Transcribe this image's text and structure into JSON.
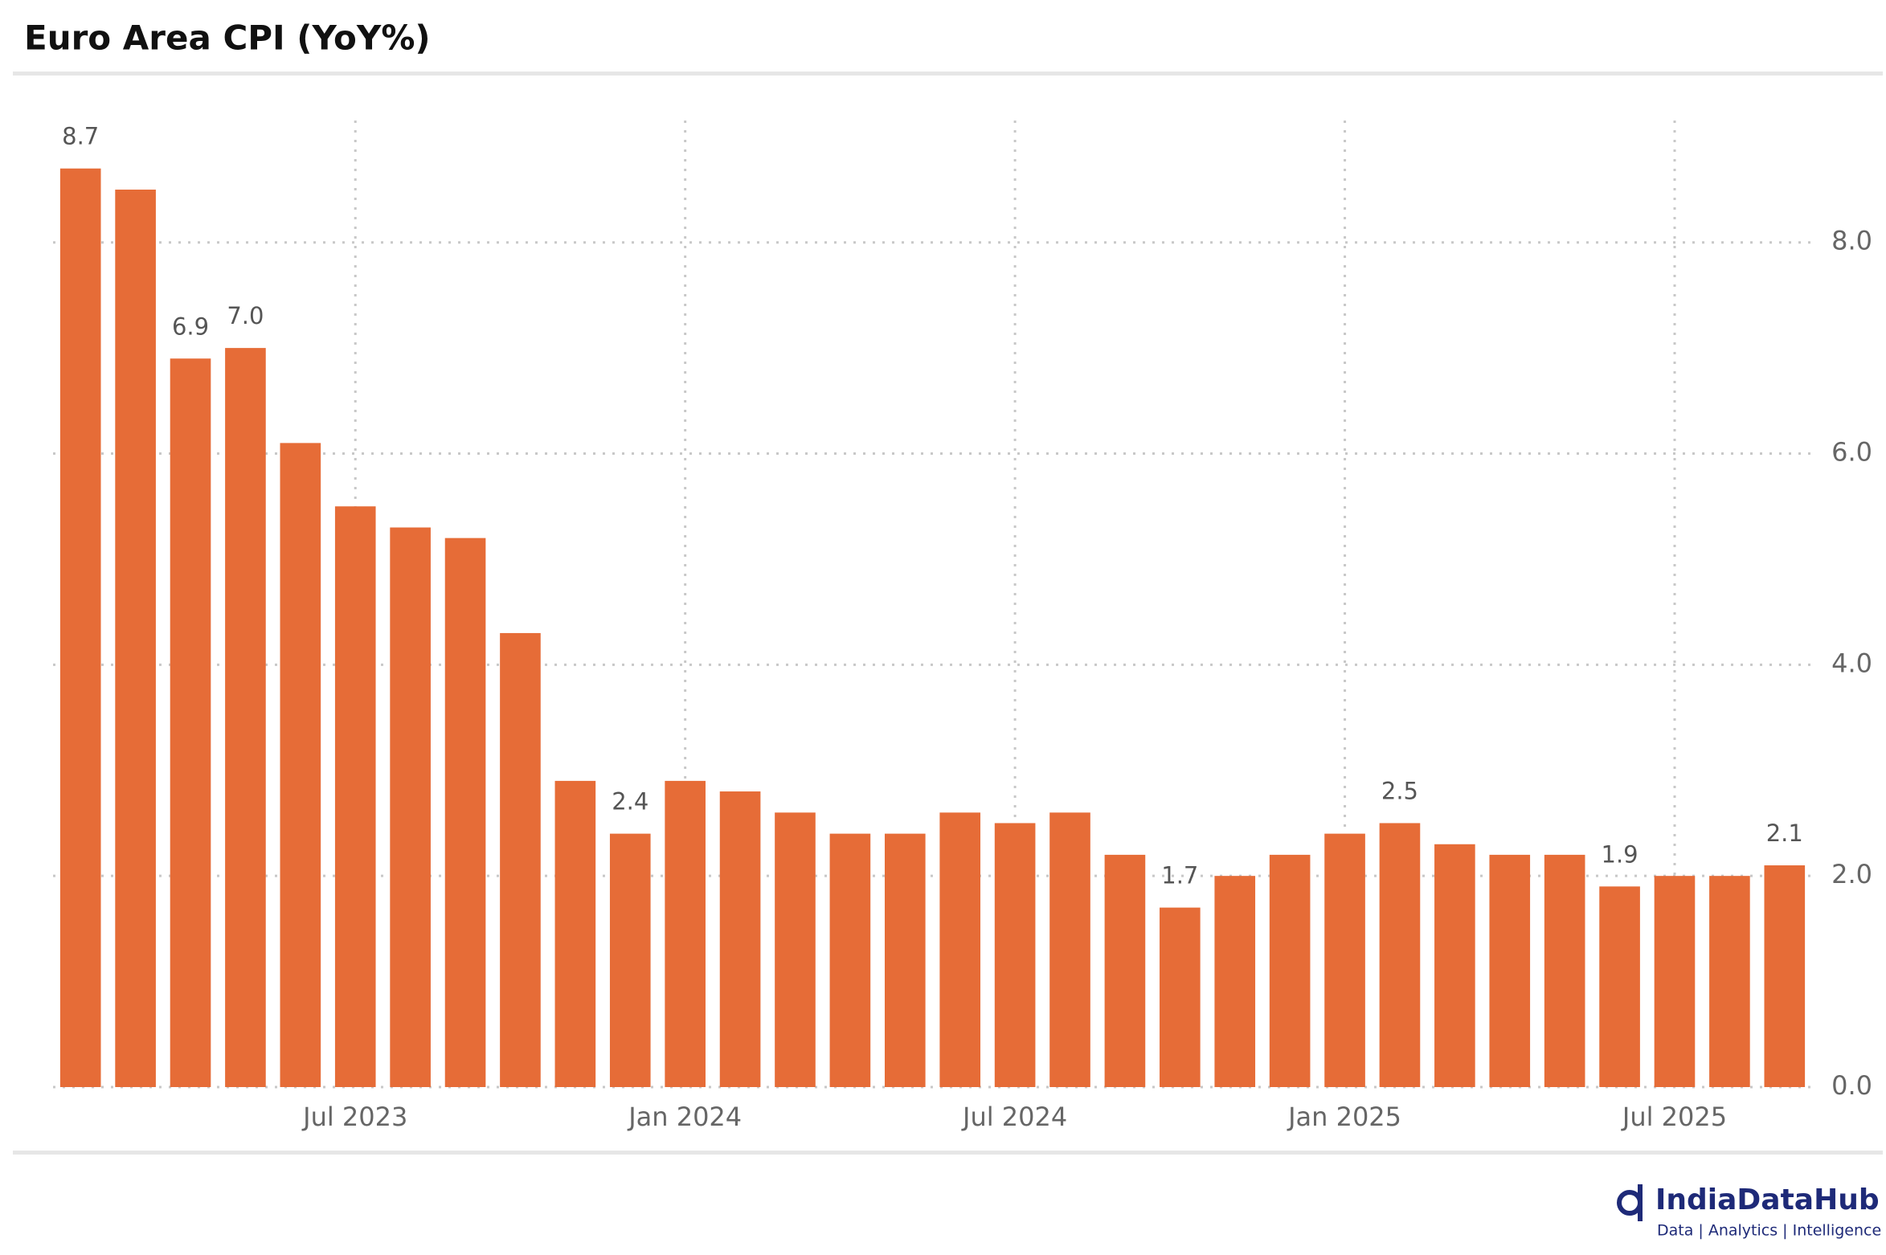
{
  "chart_data": {
    "type": "bar",
    "title": "Euro Area CPI (YoY%)",
    "categories": [
      null,
      null,
      null,
      null,
      null,
      "Jul 2023",
      null,
      null,
      null,
      null,
      null,
      "Jan 2024",
      null,
      null,
      null,
      null,
      null,
      "Jul 2024",
      null,
      null,
      null,
      null,
      null,
      "Jan 2025",
      null,
      null,
      null,
      null,
      null,
      "Jul 2025",
      null,
      null
    ],
    "values": [
      8.7,
      8.5,
      6.9,
      7.0,
      6.1,
      5.5,
      5.3,
      5.2,
      4.3,
      2.9,
      2.4,
      2.9,
      2.8,
      2.6,
      2.4,
      2.4,
      2.6,
      2.5,
      2.6,
      2.2,
      1.7,
      2.0,
      2.2,
      2.4,
      2.5,
      2.3,
      2.2,
      2.2,
      1.9,
      2.0,
      2.0,
      2.1
    ],
    "value_labels": [
      "8.7",
      null,
      "6.9",
      "7.0",
      null,
      null,
      null,
      null,
      null,
      null,
      "2.4",
      null,
      null,
      null,
      null,
      null,
      null,
      null,
      null,
      null,
      "1.7",
      null,
      null,
      null,
      "2.5",
      null,
      null,
      null,
      "1.9",
      null,
      null,
      "2.1"
    ],
    "color": "#e66c37",
    "ylim": [
      0,
      9.2
    ],
    "yticks": [
      {
        "value": 0,
        "label": "0.0"
      },
      {
        "value": 2,
        "label": "2.0"
      },
      {
        "value": 4,
        "label": "4.0"
      },
      {
        "value": 6,
        "label": "6.0"
      },
      {
        "value": 8,
        "label": "8.0"
      }
    ],
    "grid": true
  },
  "branding": {
    "name": "IndiaDataHub",
    "tagline": "Data | Analytics | Intelligence"
  }
}
